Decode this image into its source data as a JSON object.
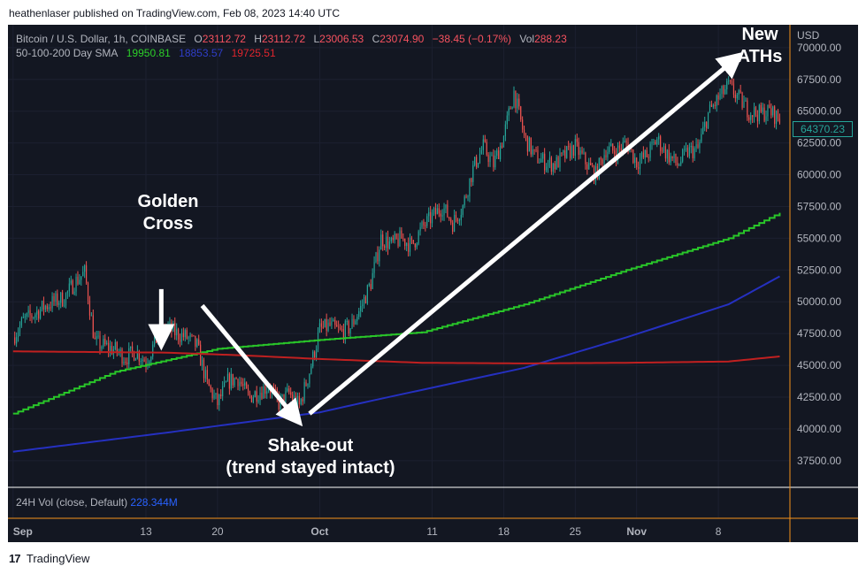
{
  "publisher": "heathenlaser published on TradingView.com, Feb 08, 2023 14:40 UTC",
  "legend": {
    "symbol": "Bitcoin / U.S. Dollar, 1h, COINBASE",
    "open_label": "O",
    "open": "23112.72",
    "high_label": "H",
    "high": "23112.72",
    "low_label": "L",
    "low": "23006.53",
    "close_label": "C",
    "close": "23074.90",
    "change": "−38.45 (−0.17%)",
    "vol_label": "Vol",
    "vol": "288.23",
    "sma_label": "50-100-200 Day SMA",
    "sma50": "19950.81",
    "sma100": "18853.57",
    "sma200": "19725.51"
  },
  "volume_legend": {
    "label": "24H Vol (close, Default)",
    "value": "228.344M"
  },
  "annotations": {
    "golden_cross": "Golden\nCross",
    "shake_out": "Shake-out\n(trend stayed intact)",
    "new_aths": "New\nATHs"
  },
  "price_tag": "64370.23",
  "footer": {
    "logo": "17",
    "brand": "TradingView"
  },
  "colors": {
    "bg": "#131722",
    "up": "#26a69a",
    "down": "#ef5350",
    "sma50": "#29c629",
    "sma100": "#2530c0",
    "sma200": "#c02020",
    "crosshair": "#f7931a"
  },
  "chart_data": {
    "type": "line",
    "title": "Bitcoin / U.S. Dollar, 1h, COINBASE",
    "y_axis_title": "USD",
    "y_ticks": [
      37500,
      40000,
      42500,
      45000,
      47500,
      50000,
      52500,
      55000,
      57500,
      60000,
      62500,
      65000,
      67500,
      70000
    ],
    "ylim": [
      35400,
      71800
    ],
    "x_ticks": [
      "Sep",
      "13",
      "20",
      "Oct",
      "11",
      "18",
      "25",
      "Nov",
      "8"
    ],
    "x_tick_days": [
      0,
      13,
      20,
      30,
      41,
      48,
      55,
      61,
      69
    ],
    "xlim": [
      -0.5,
      76
    ],
    "price_series": {
      "name": "BTCUSD",
      "days": [
        0,
        1,
        2,
        3,
        4,
        5,
        6,
        7,
        8,
        9,
        10,
        11,
        12,
        13,
        14,
        15,
        16,
        17,
        18,
        19,
        20,
        21,
        22,
        23,
        24,
        25,
        26,
        27,
        28,
        29,
        30,
        31,
        32,
        33,
        34,
        35,
        36,
        37,
        38,
        39,
        40,
        41,
        42,
        43,
        44,
        45,
        46,
        47,
        48,
        49,
        50,
        51,
        52,
        53,
        54,
        55,
        56,
        57,
        58,
        59,
        60,
        61,
        62,
        63,
        64,
        65,
        66,
        67,
        68,
        69,
        70,
        71,
        72,
        73,
        74,
        75
      ],
      "close": [
        47200,
        48500,
        49000,
        49600,
        50000,
        50300,
        51500,
        52300,
        46800,
        46500,
        46200,
        45600,
        46100,
        45300,
        47000,
        48000,
        47500,
        47200,
        46500,
        43500,
        42000,
        43700,
        44000,
        42500,
        42900,
        43400,
        42000,
        42800,
        41800,
        44500,
        47800,
        48100,
        47600,
        48000,
        49500,
        51500,
        55000,
        54500,
        55000,
        54400,
        55800,
        56700,
        57500,
        56200,
        57500,
        60500,
        62200,
        60800,
        63000,
        66500,
        63000,
        61500,
        61000,
        60800,
        61500,
        62200,
        61000,
        60000,
        62000,
        61800,
        62500,
        61000,
        61500,
        62800,
        61600,
        60800,
        61800,
        62000,
        64800,
        66000,
        67000,
        66000,
        65000,
        64800,
        65000,
        64370
      ]
    },
    "series": [
      {
        "name": "50",
        "color": "#29c629",
        "days": [
          0,
          10,
          20,
          30,
          40,
          50,
          60,
          70,
          75
        ],
        "values": [
          41200,
          44500,
          46300,
          47000,
          47600,
          49800,
          52500,
          55000,
          57000
        ]
      },
      {
        "name": "100",
        "color": "#2530c0",
        "days": [
          0,
          15,
          30,
          35,
          50,
          60,
          70,
          75
        ],
        "values": [
          38200,
          39700,
          41300,
          42200,
          44800,
          47200,
          49800,
          52000
        ]
      },
      {
        "name": "200",
        "color": "#c02020",
        "days": [
          0,
          15,
          22,
          30,
          40,
          50,
          60,
          70,
          75
        ],
        "values": [
          46100,
          46000,
          45800,
          45500,
          45200,
          45150,
          45200,
          45300,
          45700
        ]
      }
    ],
    "arrows": [
      {
        "from_day": 14.5,
        "from_price": 51000,
        "to_day": 14.5,
        "to_price": 47200
      },
      {
        "from_day": 18.5,
        "from_price": 49700,
        "to_day": 27.5,
        "to_price": 41000
      },
      {
        "from_day": 29,
        "from_price": 41200,
        "to_day": 70.5,
        "to_price": 69000
      }
    ],
    "volume": {
      "label": "24H Vol (close, Default)",
      "value": "228.344M"
    }
  }
}
